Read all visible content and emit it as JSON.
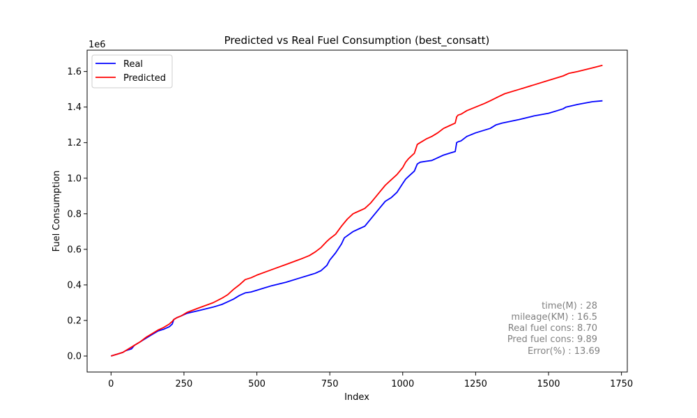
{
  "chart_data": {
    "type": "line",
    "title": "Predicted vs Real Fuel Consumption (best_consatt)",
    "xlabel": "Index",
    "ylabel": "Fuel Consumption",
    "y_offset_label": "1e6",
    "xlim": [
      -82,
      1770
    ],
    "ylim": [
      -0.09,
      1.72
    ],
    "x_ticks": [
      0,
      250,
      500,
      750,
      1000,
      1250,
      1500,
      1750
    ],
    "y_ticks": [
      0.0,
      0.2,
      0.4,
      0.6,
      0.8,
      1.0,
      1.2,
      1.4,
      1.6
    ],
    "x_tick_labels": [
      "0",
      "250",
      "500",
      "750",
      "1000",
      "1250",
      "1500",
      "1750"
    ],
    "y_tick_labels": [
      "0.0",
      "0.2",
      "0.4",
      "0.6",
      "0.8",
      "1.0",
      "1.2",
      "1.4",
      "1.6"
    ],
    "legend_position": "top-left",
    "grid": false,
    "series": [
      {
        "name": "Real",
        "color": "#0000ff",
        "x": [
          0,
          20,
          40,
          50,
          70,
          80,
          100,
          120,
          140,
          160,
          180,
          200,
          210,
          215,
          225,
          240,
          260,
          300,
          350,
          380,
          400,
          420,
          440,
          460,
          480,
          500,
          550,
          600,
          650,
          680,
          700,
          720,
          740,
          750,
          770,
          790,
          800,
          830,
          850,
          870,
          900,
          920,
          940,
          960,
          980,
          1000,
          1010,
          1020,
          1040,
          1050,
          1060,
          1080,
          1100,
          1120,
          1140,
          1160,
          1180,
          1185,
          1190,
          1200,
          1220,
          1250,
          1300,
          1320,
          1340,
          1400,
          1450,
          1500,
          1530,
          1550,
          1560,
          1600,
          1650,
          1685
        ],
        "values": [
          0.0,
          0.01,
          0.02,
          0.03,
          0.04,
          0.06,
          0.08,
          0.1,
          0.12,
          0.14,
          0.15,
          0.165,
          0.18,
          0.205,
          0.215,
          0.225,
          0.24,
          0.255,
          0.275,
          0.29,
          0.305,
          0.32,
          0.34,
          0.355,
          0.36,
          0.37,
          0.395,
          0.415,
          0.44,
          0.455,
          0.465,
          0.48,
          0.51,
          0.54,
          0.58,
          0.63,
          0.665,
          0.7,
          0.715,
          0.73,
          0.79,
          0.83,
          0.87,
          0.89,
          0.92,
          0.97,
          0.995,
          1.01,
          1.04,
          1.08,
          1.09,
          1.095,
          1.1,
          1.115,
          1.13,
          1.14,
          1.15,
          1.2,
          1.205,
          1.21,
          1.235,
          1.255,
          1.28,
          1.3,
          1.31,
          1.33,
          1.35,
          1.365,
          1.38,
          1.39,
          1.4,
          1.415,
          1.43,
          1.435
        ]
      },
      {
        "name": "Predicted",
        "color": "#ff0000",
        "x": [
          0,
          20,
          40,
          60,
          80,
          100,
          120,
          140,
          160,
          180,
          200,
          210,
          215,
          225,
          240,
          260,
          300,
          350,
          380,
          400,
          420,
          440,
          460,
          480,
          500,
          550,
          600,
          650,
          680,
          700,
          720,
          740,
          750,
          770,
          790,
          810,
          830,
          850,
          870,
          890,
          900,
          920,
          940,
          960,
          980,
          1000,
          1010,
          1020,
          1040,
          1050,
          1060,
          1080,
          1100,
          1120,
          1140,
          1160,
          1180,
          1185,
          1190,
          1200,
          1220,
          1250,
          1280,
          1300,
          1330,
          1350,
          1400,
          1450,
          1500,
          1550,
          1570,
          1600,
          1650,
          1685
        ],
        "values": [
          0.0,
          0.01,
          0.02,
          0.04,
          0.06,
          0.08,
          0.105,
          0.125,
          0.145,
          0.16,
          0.18,
          0.195,
          0.205,
          0.215,
          0.225,
          0.245,
          0.27,
          0.3,
          0.325,
          0.345,
          0.375,
          0.4,
          0.43,
          0.44,
          0.455,
          0.485,
          0.515,
          0.545,
          0.565,
          0.585,
          0.61,
          0.645,
          0.66,
          0.685,
          0.73,
          0.77,
          0.8,
          0.815,
          0.83,
          0.86,
          0.88,
          0.92,
          0.96,
          0.99,
          1.02,
          1.06,
          1.09,
          1.11,
          1.14,
          1.19,
          1.2,
          1.22,
          1.235,
          1.255,
          1.28,
          1.295,
          1.31,
          1.345,
          1.355,
          1.36,
          1.38,
          1.4,
          1.42,
          1.435,
          1.46,
          1.475,
          1.5,
          1.525,
          1.55,
          1.575,
          1.59,
          1.6,
          1.62,
          1.635
        ]
      }
    ],
    "annotations": [
      "time(M) : 28",
      "mileage(KM) : 16.5",
      "Real fuel cons: 8.70",
      "Pred fuel cons: 9.89",
      "Error(%) : 13.69"
    ]
  }
}
